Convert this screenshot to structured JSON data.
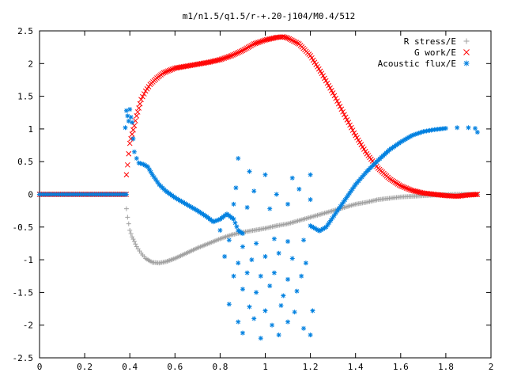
{
  "chart_data": {
    "type": "scatter",
    "title": "m1/n1.5/q1.5/r-+.20-j104/M0.4/512",
    "xlabel": "",
    "ylabel": "",
    "xlim": [
      0,
      2
    ],
    "ylim": [
      -2.5,
      2.5
    ],
    "x_ticks": [
      "0",
      "0.2",
      "0.4",
      "0.6",
      "0.8",
      "1",
      "1.2",
      "1.4",
      "1.6",
      "1.8",
      "2"
    ],
    "y_ticks": [
      "2.5",
      "2",
      "1.5",
      "1",
      "0.5",
      "0",
      "-0.5",
      "-1",
      "-1.5",
      "-2",
      "-2.5"
    ],
    "grid": false,
    "legend_position": "top-right",
    "series": [
      {
        "name": "R stress/E",
        "marker": "plus",
        "color": "#a0a0a0",
        "points": [
          [
            0.385,
            -0.22
          ],
          [
            0.39,
            -0.35
          ],
          [
            0.395,
            -0.45
          ],
          [
            0.4,
            -0.55
          ],
          [
            0.41,
            -0.65
          ],
          [
            0.42,
            -0.72
          ],
          [
            0.43,
            -0.8
          ],
          [
            0.45,
            -0.9
          ],
          [
            0.47,
            -0.98
          ],
          [
            0.5,
            -1.04
          ],
          [
            0.53,
            -1.05
          ],
          [
            0.56,
            -1.03
          ],
          [
            0.6,
            -0.98
          ],
          [
            0.65,
            -0.9
          ],
          [
            0.7,
            -0.82
          ],
          [
            0.75,
            -0.75
          ],
          [
            0.8,
            -0.68
          ],
          [
            0.85,
            -0.62
          ],
          [
            0.9,
            -0.58
          ],
          [
            0.95,
            -0.55
          ],
          [
            1.0,
            -0.52
          ],
          [
            1.05,
            -0.48
          ],
          [
            1.1,
            -0.45
          ],
          [
            1.15,
            -0.4
          ],
          [
            1.2,
            -0.35
          ],
          [
            1.25,
            -0.3
          ],
          [
            1.3,
            -0.25
          ],
          [
            1.35,
            -0.2
          ],
          [
            1.4,
            -0.15
          ],
          [
            1.45,
            -0.12
          ],
          [
            1.5,
            -0.08
          ],
          [
            1.55,
            -0.06
          ],
          [
            1.6,
            -0.04
          ],
          [
            1.65,
            -0.03
          ],
          [
            1.7,
            -0.02
          ],
          [
            1.75,
            -0.01
          ],
          [
            1.8,
            -0.005
          ],
          [
            1.85,
            0.0
          ],
          [
            1.9,
            0.0
          ],
          [
            1.94,
            0.0
          ]
        ]
      },
      {
        "name": "G work/E",
        "marker": "cross",
        "color": "#ff0000",
        "points": [
          [
            0.385,
            0.3
          ],
          [
            0.39,
            0.45
          ],
          [
            0.395,
            0.62
          ],
          [
            0.4,
            0.78
          ],
          [
            0.41,
            0.92
          ],
          [
            0.42,
            1.05
          ],
          [
            0.43,
            1.2
          ],
          [
            0.44,
            1.32
          ],
          [
            0.45,
            1.45
          ],
          [
            0.47,
            1.58
          ],
          [
            0.49,
            1.68
          ],
          [
            0.52,
            1.78
          ],
          [
            0.55,
            1.86
          ],
          [
            0.6,
            1.93
          ],
          [
            0.65,
            1.96
          ],
          [
            0.7,
            1.99
          ],
          [
            0.75,
            2.02
          ],
          [
            0.8,
            2.06
          ],
          [
            0.85,
            2.12
          ],
          [
            0.9,
            2.2
          ],
          [
            0.95,
            2.3
          ],
          [
            1.0,
            2.36
          ],
          [
            1.05,
            2.4
          ],
          [
            1.08,
            2.41
          ],
          [
            1.1,
            2.39
          ],
          [
            1.15,
            2.3
          ],
          [
            1.2,
            2.12
          ],
          [
            1.25,
            1.85
          ],
          [
            1.3,
            1.55
          ],
          [
            1.35,
            1.22
          ],
          [
            1.4,
            0.9
          ],
          [
            1.45,
            0.62
          ],
          [
            1.5,
            0.4
          ],
          [
            1.55,
            0.24
          ],
          [
            1.6,
            0.13
          ],
          [
            1.65,
            0.06
          ],
          [
            1.7,
            0.02
          ],
          [
            1.75,
            0.0
          ],
          [
            1.8,
            -0.02
          ],
          [
            1.85,
            -0.03
          ],
          [
            1.9,
            -0.01
          ],
          [
            1.94,
            0.0
          ]
        ]
      },
      {
        "name": "Acoustic flux/E",
        "marker": "star",
        "color": "#0080e0",
        "points": [
          [
            0.38,
            1.02
          ],
          [
            0.385,
            1.28
          ],
          [
            0.39,
            1.2
          ],
          [
            0.395,
            1.12
          ],
          [
            0.4,
            1.3
          ],
          [
            0.405,
            1.18
          ],
          [
            0.41,
            1.1
          ],
          [
            0.415,
            0.85
          ],
          [
            0.42,
            0.65
          ],
          [
            0.43,
            0.55
          ],
          [
            0.44,
            0.48
          ],
          [
            0.46,
            0.46
          ],
          [
            0.48,
            0.42
          ],
          [
            0.5,
            0.3
          ],
          [
            0.53,
            0.15
          ],
          [
            0.56,
            0.05
          ],
          [
            0.6,
            -0.05
          ],
          [
            0.65,
            -0.15
          ],
          [
            0.7,
            -0.25
          ],
          [
            0.74,
            -0.34
          ],
          [
            0.77,
            -0.42
          ],
          [
            0.8,
            -0.38
          ],
          [
            0.83,
            -0.3
          ],
          [
            0.86,
            -0.38
          ],
          [
            0.88,
            -0.55
          ],
          [
            0.9,
            -0.6
          ],
          [
            1.2,
            -0.48
          ],
          [
            1.24,
            -0.56
          ],
          [
            1.27,
            -0.5
          ],
          [
            1.29,
            -0.4
          ],
          [
            1.32,
            -0.25
          ],
          [
            1.36,
            -0.05
          ],
          [
            1.4,
            0.15
          ],
          [
            1.45,
            0.35
          ],
          [
            1.5,
            0.52
          ],
          [
            1.55,
            0.68
          ],
          [
            1.6,
            0.8
          ],
          [
            1.65,
            0.9
          ],
          [
            1.7,
            0.96
          ],
          [
            1.75,
            0.99
          ],
          [
            1.8,
            1.01
          ],
          [
            1.85,
            1.02
          ],
          [
            1.9,
            1.02
          ],
          [
            1.93,
            1.01
          ],
          [
            1.94,
            0.95
          ],
          [
            0.88,
            0.55
          ],
          [
            0.93,
            0.35
          ],
          [
            1.0,
            0.3
          ],
          [
            1.12,
            0.25
          ],
          [
            1.2,
            0.3
          ],
          [
            0.87,
            0.1
          ],
          [
            0.95,
            0.05
          ],
          [
            1.05,
            0.0
          ],
          [
            1.15,
            0.08
          ],
          [
            1.2,
            -0.08
          ],
          [
            0.86,
            -0.15
          ],
          [
            0.92,
            -0.2
          ],
          [
            1.02,
            -0.22
          ],
          [
            1.1,
            -0.15
          ],
          [
            0.8,
            -0.55
          ],
          [
            0.84,
            -0.7
          ],
          [
            0.9,
            -0.8
          ],
          [
            0.96,
            -0.75
          ],
          [
            1.04,
            -0.68
          ],
          [
            1.1,
            -0.72
          ],
          [
            1.17,
            -0.7
          ],
          [
            0.82,
            -0.95
          ],
          [
            0.88,
            -1.05
          ],
          [
            0.94,
            -1.0
          ],
          [
            1.0,
            -0.95
          ],
          [
            1.06,
            -0.9
          ],
          [
            1.12,
            -0.98
          ],
          [
            1.18,
            -1.05
          ],
          [
            0.86,
            -1.25
          ],
          [
            0.92,
            -1.2
          ],
          [
            0.98,
            -1.25
          ],
          [
            1.04,
            -1.2
          ],
          [
            1.1,
            -1.3
          ],
          [
            1.16,
            -1.25
          ],
          [
            0.9,
            -1.45
          ],
          [
            0.96,
            -1.5
          ],
          [
            1.02,
            -1.4
          ],
          [
            1.08,
            -1.55
          ],
          [
            1.14,
            -1.48
          ],
          [
            0.84,
            -1.68
          ],
          [
            0.93,
            -1.72
          ],
          [
            1.0,
            -1.78
          ],
          [
            1.07,
            -1.7
          ],
          [
            1.13,
            -1.8
          ],
          [
            1.21,
            -1.78
          ],
          [
            0.88,
            -1.95
          ],
          [
            0.95,
            -1.9
          ],
          [
            1.03,
            -2.0
          ],
          [
            1.1,
            -1.95
          ],
          [
            1.17,
            -2.05
          ],
          [
            0.9,
            -2.12
          ],
          [
            0.98,
            -2.2
          ],
          [
            1.06,
            -2.15
          ],
          [
            1.2,
            -2.15
          ]
        ]
      }
    ]
  }
}
